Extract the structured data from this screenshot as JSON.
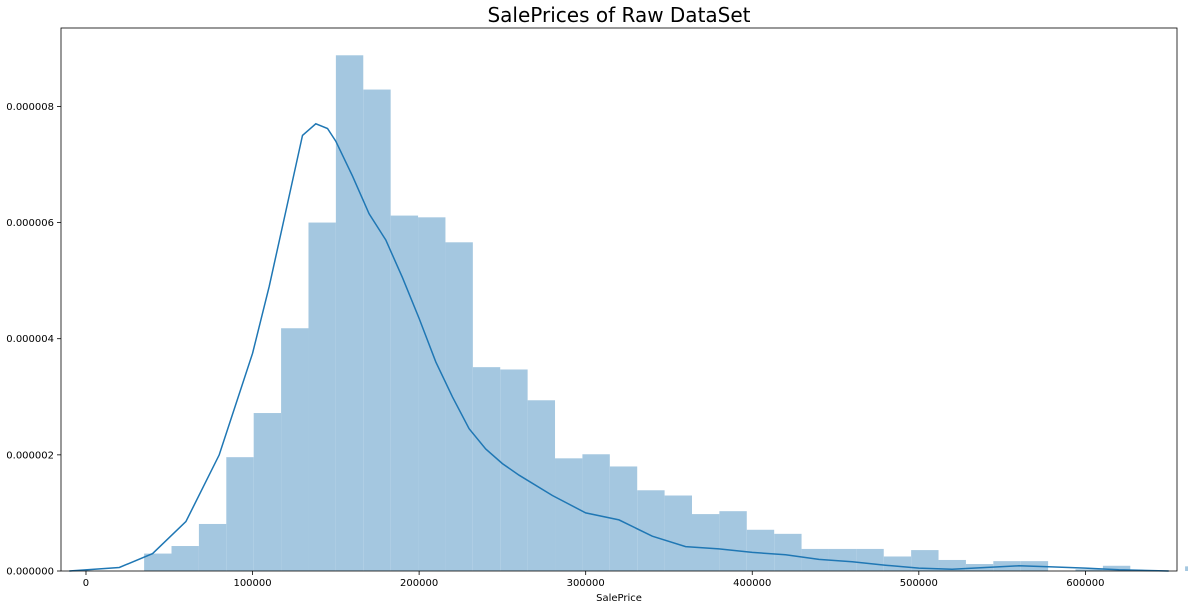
{
  "chart_data": {
    "type": "bar",
    "subtype": "histogram-with-kde",
    "title": "SalePrices of Raw DataSet",
    "xlabel": "SalePrice",
    "ylabel": "",
    "xlim": [
      -15000,
      655000
    ],
    "ylim": [
      0,
      9.35e-06
    ],
    "grid": false,
    "legend": "none",
    "colors": {
      "bars": "#a4c7e0",
      "kde": "#1f77b4"
    },
    "x_ticks": [
      0,
      100000,
      200000,
      300000,
      400000,
      500000,
      600000
    ],
    "x_tick_labels": [
      "0",
      "100000",
      "200000",
      "300000",
      "400000",
      "500000",
      "600000"
    ],
    "y_ticks": [
      0,
      2e-06,
      4e-06,
      6e-06,
      8e-06
    ],
    "y_tick_labels": [
      "0.000000",
      "0.000002",
      "0.000004",
      "0.000006",
      "0.000008"
    ],
    "bin_start": 34900,
    "bin_width": 16446,
    "values": [
      3e-07,
      4.3e-07,
      8.1e-07,
      1.96e-06,
      2.72e-06,
      4.18e-06,
      6e-06,
      8.88e-06,
      8.29e-06,
      6.12e-06,
      6.09e-06,
      5.66e-06,
      3.51e-06,
      3.47e-06,
      2.94e-06,
      1.94e-06,
      2.01e-06,
      1.8e-06,
      1.39e-06,
      1.3e-06,
      9.8e-07,
      1.03e-06,
      7.1e-07,
      6.4e-07,
      3.8e-07,
      3.8e-07,
      3.8e-07,
      2.5e-07,
      3.6e-07,
      1.9e-07,
      1.2e-07,
      1.7e-07,
      1.7e-07,
      0.0,
      3e-08,
      9e-08,
      0.0,
      0.0,
      8e-08,
      9e-08,
      0.0,
      7e-08,
      0.0
    ],
    "kde": {
      "x": [
        -10000,
        20000,
        40000,
        60000,
        80000,
        100000,
        110000,
        120000,
        130000,
        138000,
        145000,
        150000,
        160000,
        170000,
        180000,
        190000,
        200000,
        210000,
        220000,
        230000,
        240000,
        250000,
        260000,
        280000,
        300000,
        320000,
        340000,
        360000,
        380000,
        400000,
        420000,
        440000,
        460000,
        480000,
        500000,
        520000,
        540000,
        560000,
        580000,
        600000,
        620000,
        650000
      ],
      "y": [
        0,
        6e-08,
        3e-07,
        8.5e-07,
        2e-06,
        3.75e-06,
        4.9e-06,
        6.2e-06,
        7.5e-06,
        7.7e-06,
        7.62e-06,
        7.4e-06,
        6.8e-06,
        6.15e-06,
        5.7e-06,
        5.05e-06,
        4.35e-06,
        3.6e-06,
        3e-06,
        2.45e-06,
        2.1e-06,
        1.85e-06,
        1.65e-06,
        1.3e-06,
        1e-06,
        8.8e-07,
        6e-07,
        4.2e-07,
        3.8e-07,
        3.2e-07,
        2.8e-07,
        2e-07,
        1.6e-07,
        1e-07,
        5e-08,
        3e-08,
        6e-08,
        9e-08,
        7e-08,
        5e-08,
        2e-08,
        0
      ]
    }
  }
}
